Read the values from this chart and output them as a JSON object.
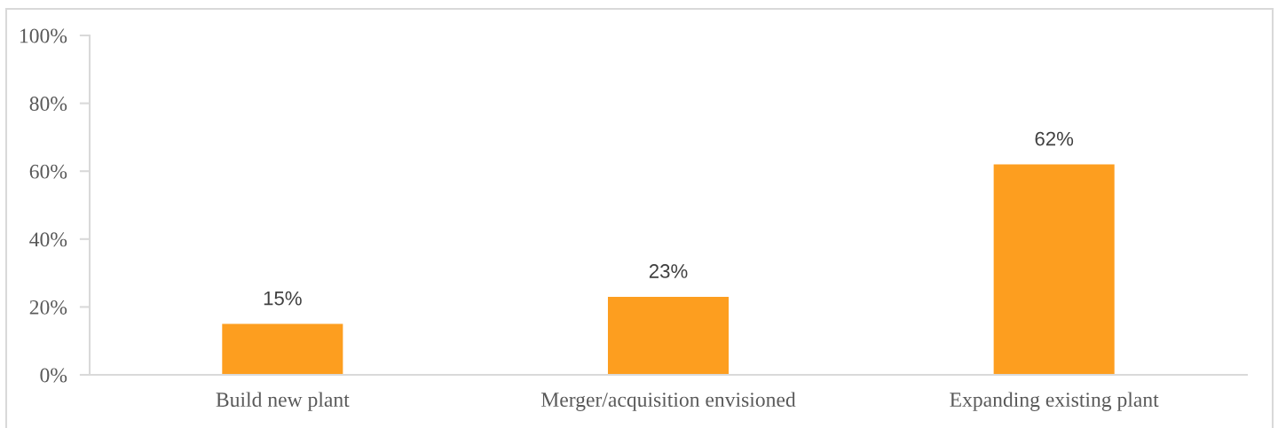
{
  "chart_data": {
    "type": "bar",
    "categories": [
      "Build new plant",
      "Merger/acquisition envisioned",
      "Expanding existing plant"
    ],
    "values": [
      15,
      23,
      62
    ],
    "color": "#fd9e1f",
    "value_labels": [
      "15%",
      "23%",
      "62%"
    ],
    "ylim": [
      0,
      100
    ],
    "yticks": [
      {
        "value": 0,
        "label": "0%"
      },
      {
        "value": 20,
        "label": "20%"
      },
      {
        "value": 40,
        "label": "40%"
      },
      {
        "value": 60,
        "label": "60%"
      },
      {
        "value": 80,
        "label": "80%"
      },
      {
        "value": 100,
        "label": "100%"
      }
    ],
    "grid": false,
    "legend": false
  }
}
